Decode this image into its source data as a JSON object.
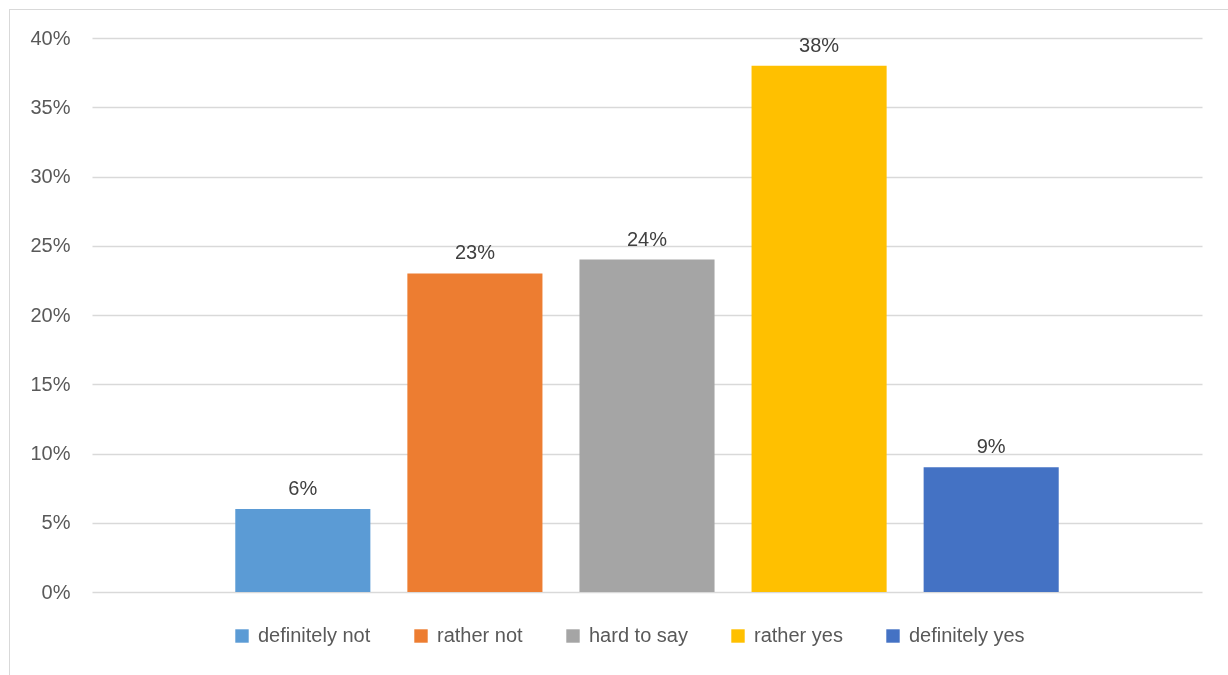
{
  "chart_data": {
    "type": "bar",
    "categories": [
      null
    ],
    "series": [
      {
        "name": "definitely not",
        "color": "#5b9bd5",
        "values": [
          6
        ],
        "value_labels": [
          "6%"
        ]
      },
      {
        "name": "rather not",
        "color": "#ed7d31",
        "values": [
          23
        ],
        "value_labels": [
          "23%"
        ]
      },
      {
        "name": "hard to say",
        "color": "#a5a5a5",
        "values": [
          24
        ],
        "value_labels": [
          "24%"
        ]
      },
      {
        "name": "rather yes",
        "color": "#ffc000",
        "values": [
          38
        ],
        "value_labels": [
          "38%"
        ]
      },
      {
        "name": "definitely yes",
        "color": "#4472c4",
        "values": [
          9
        ],
        "value_labels": [
          "9%"
        ]
      }
    ],
    "ylim": [
      0,
      40
    ],
    "yticks": [
      {
        "value": 0,
        "label": "0%"
      },
      {
        "value": 5,
        "label": "5%"
      },
      {
        "value": 10,
        "label": "10%"
      },
      {
        "value": 15,
        "label": "15%"
      },
      {
        "value": 20,
        "label": "20%"
      },
      {
        "value": 25,
        "label": "25%"
      },
      {
        "value": 30,
        "label": "30%"
      },
      {
        "value": 35,
        "label": "35%"
      },
      {
        "value": 40,
        "label": "40%"
      }
    ],
    "grid": "y",
    "legend": "bottom"
  }
}
